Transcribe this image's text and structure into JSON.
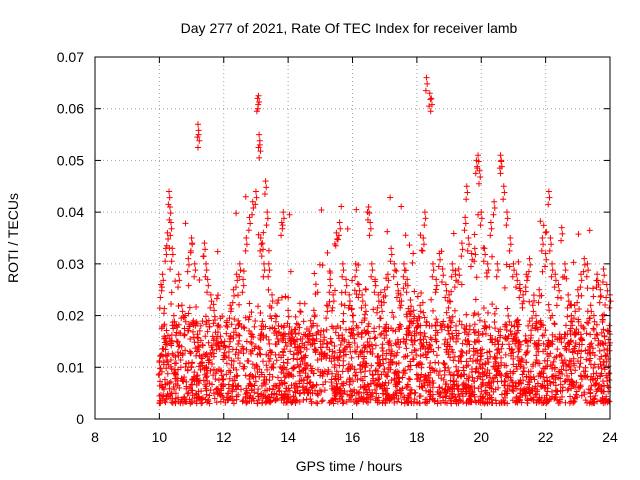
{
  "chart_data": {
    "type": "scatter",
    "title": "Day 277 of 2021, Rate Of TEC Index for receiver lamb",
    "xlabel": "GPS time / hours",
    "ylabel": "ROTI / TECUs",
    "xlim": [
      8,
      24
    ],
    "ylim": [
      0,
      0.07
    ],
    "x_ticks": [
      8,
      10,
      12,
      14,
      16,
      18,
      20,
      22,
      24
    ],
    "y_ticks": [
      0,
      0.01,
      0.02,
      0.03,
      0.04,
      0.05,
      0.06,
      0.07
    ],
    "x_tick_labels": [
      "8",
      "10",
      "12",
      "14",
      "16",
      "18",
      "20",
      "22",
      "24"
    ],
    "y_tick_labels": [
      "0",
      "0.01",
      "0.02",
      "0.03",
      "0.04",
      "0.05",
      "0.06",
      "0.07"
    ],
    "grid": true,
    "marker": "+",
    "series_color": "#ff0000",
    "series": [
      {
        "name": "ROTI",
        "points": [
          [
            10.0,
            0.011
          ],
          [
            10.05,
            0.026
          ],
          [
            10.1,
            0.028
          ],
          [
            10.15,
            0.016
          ],
          [
            10.2,
            0.033
          ],
          [
            10.25,
            0.036
          ],
          [
            10.3,
            0.044
          ],
          [
            10.33,
            0.041
          ],
          [
            10.36,
            0.038
          ],
          [
            10.4,
            0.033
          ],
          [
            10.45,
            0.02
          ],
          [
            10.5,
            0.012
          ],
          [
            10.6,
            0.028
          ],
          [
            10.7,
            0.022
          ],
          [
            10.8,
            0.02
          ],
          [
            10.9,
            0.031
          ],
          [
            11.0,
            0.035
          ],
          [
            11.1,
            0.03
          ],
          [
            11.2,
            0.057
          ],
          [
            11.22,
            0.055
          ],
          [
            11.3,
            0.012
          ],
          [
            11.4,
            0.034
          ],
          [
            11.45,
            0.03
          ],
          [
            11.5,
            0.027
          ],
          [
            11.6,
            0.024
          ],
          [
            11.7,
            0.021
          ],
          [
            11.8,
            0.018
          ],
          [
            11.9,
            0.016
          ],
          [
            12.0,
            0.014
          ],
          [
            12.1,
            0.019
          ],
          [
            12.2,
            0.022
          ],
          [
            12.3,
            0.025
          ],
          [
            12.4,
            0.028
          ],
          [
            12.5,
            0.03
          ],
          [
            12.6,
            0.027
          ],
          [
            12.7,
            0.035
          ],
          [
            12.8,
            0.039
          ],
          [
            12.9,
            0.042
          ],
          [
            13.0,
            0.044
          ],
          [
            13.05,
            0.062
          ],
          [
            13.08,
            0.0625
          ],
          [
            13.1,
            0.055
          ],
          [
            13.12,
            0.053
          ],
          [
            13.15,
            0.035
          ],
          [
            13.2,
            0.034
          ],
          [
            13.25,
            0.03
          ],
          [
            13.3,
            0.046
          ],
          [
            13.35,
            0.04
          ],
          [
            13.4,
            0.03
          ],
          [
            13.5,
            0.024
          ],
          [
            13.6,
            0.02
          ],
          [
            13.7,
            0.018
          ],
          [
            13.8,
            0.038
          ],
          [
            13.85,
            0.04
          ],
          [
            13.9,
            0.016
          ],
          [
            14.0,
            0.021
          ],
          [
            14.1,
            0.017
          ],
          [
            14.2,
            0.015
          ],
          [
            14.3,
            0.014
          ],
          [
            14.4,
            0.013
          ],
          [
            14.5,
            0.012
          ],
          [
            14.6,
            0.016
          ],
          [
            14.7,
            0.019
          ],
          [
            14.8,
            0.021
          ],
          [
            14.9,
            0.018
          ],
          [
            15.0,
            0.015
          ],
          [
            15.1,
            0.017
          ],
          [
            15.2,
            0.022
          ],
          [
            15.3,
            0.027
          ],
          [
            15.4,
            0.024
          ],
          [
            15.5,
            0.036
          ],
          [
            15.6,
            0.038
          ],
          [
            15.7,
            0.03
          ],
          [
            15.8,
            0.027
          ],
          [
            15.9,
            0.024
          ],
          [
            16.0,
            0.02
          ],
          [
            16.1,
            0.03
          ],
          [
            16.2,
            0.026
          ],
          [
            16.3,
            0.024
          ],
          [
            16.4,
            0.022
          ],
          [
            16.5,
            0.041
          ],
          [
            16.55,
            0.038
          ],
          [
            16.6,
            0.03
          ],
          [
            16.7,
            0.027
          ],
          [
            16.8,
            0.024
          ],
          [
            16.9,
            0.022
          ],
          [
            17.0,
            0.025
          ],
          [
            17.1,
            0.028
          ],
          [
            17.2,
            0.033
          ],
          [
            17.3,
            0.03
          ],
          [
            17.4,
            0.026
          ],
          [
            17.5,
            0.024
          ],
          [
            17.6,
            0.03
          ],
          [
            17.7,
            0.027
          ],
          [
            17.8,
            0.023
          ],
          [
            17.9,
            0.021
          ],
          [
            18.0,
            0.019
          ],
          [
            18.1,
            0.022
          ],
          [
            18.2,
            0.035
          ],
          [
            18.25,
            0.04
          ],
          [
            18.3,
            0.066
          ],
          [
            18.4,
            0.063
          ],
          [
            18.45,
            0.062
          ],
          [
            18.5,
            0.03
          ],
          [
            18.6,
            0.027
          ],
          [
            18.7,
            0.032
          ],
          [
            18.8,
            0.029
          ],
          [
            18.9,
            0.026
          ],
          [
            19.0,
            0.024
          ],
          [
            19.1,
            0.03
          ],
          [
            19.2,
            0.028
          ],
          [
            19.3,
            0.029
          ],
          [
            19.4,
            0.034
          ],
          [
            19.5,
            0.039
          ],
          [
            19.55,
            0.045
          ],
          [
            19.6,
            0.035
          ],
          [
            19.7,
            0.032
          ],
          [
            19.8,
            0.033
          ],
          [
            19.85,
            0.05
          ],
          [
            19.9,
            0.051
          ],
          [
            19.95,
            0.048
          ],
          [
            20.0,
            0.04
          ],
          [
            20.1,
            0.033
          ],
          [
            20.2,
            0.03
          ],
          [
            20.3,
            0.038
          ],
          [
            20.4,
            0.042
          ],
          [
            20.5,
            0.03
          ],
          [
            20.6,
            0.051
          ],
          [
            20.62,
            0.05
          ],
          [
            20.7,
            0.045
          ],
          [
            20.8,
            0.04
          ],
          [
            20.9,
            0.035
          ],
          [
            21.0,
            0.03
          ],
          [
            21.1,
            0.028
          ],
          [
            21.2,
            0.026
          ],
          [
            21.3,
            0.024
          ],
          [
            21.4,
            0.028
          ],
          [
            21.5,
            0.031
          ],
          [
            21.6,
            0.022
          ],
          [
            21.7,
            0.02
          ],
          [
            21.8,
            0.025
          ],
          [
            21.9,
            0.035
          ],
          [
            22.0,
            0.032
          ],
          [
            22.1,
            0.044
          ],
          [
            22.15,
            0.035
          ],
          [
            22.2,
            0.03
          ],
          [
            22.3,
            0.028
          ],
          [
            22.4,
            0.026
          ],
          [
            22.5,
            0.037
          ],
          [
            22.6,
            0.03
          ],
          [
            22.7,
            0.024
          ],
          [
            22.8,
            0.02
          ],
          [
            22.9,
            0.022
          ],
          [
            23.0,
            0.025
          ],
          [
            23.1,
            0.028
          ],
          [
            23.2,
            0.031
          ],
          [
            23.3,
            0.03
          ],
          [
            23.4,
            0.022
          ],
          [
            23.5,
            0.02
          ],
          [
            23.6,
            0.028
          ],
          [
            23.7,
            0.025
          ],
          [
            23.8,
            0.029
          ],
          [
            23.9,
            0.026
          ],
          [
            24.0,
            0.024
          ]
        ],
        "base_band": {
          "x_range": [
            10.0,
            24.0
          ],
          "y_typical": [
            0.003,
            0.018
          ],
          "spikes_y_max": 0.045
        }
      }
    ]
  }
}
